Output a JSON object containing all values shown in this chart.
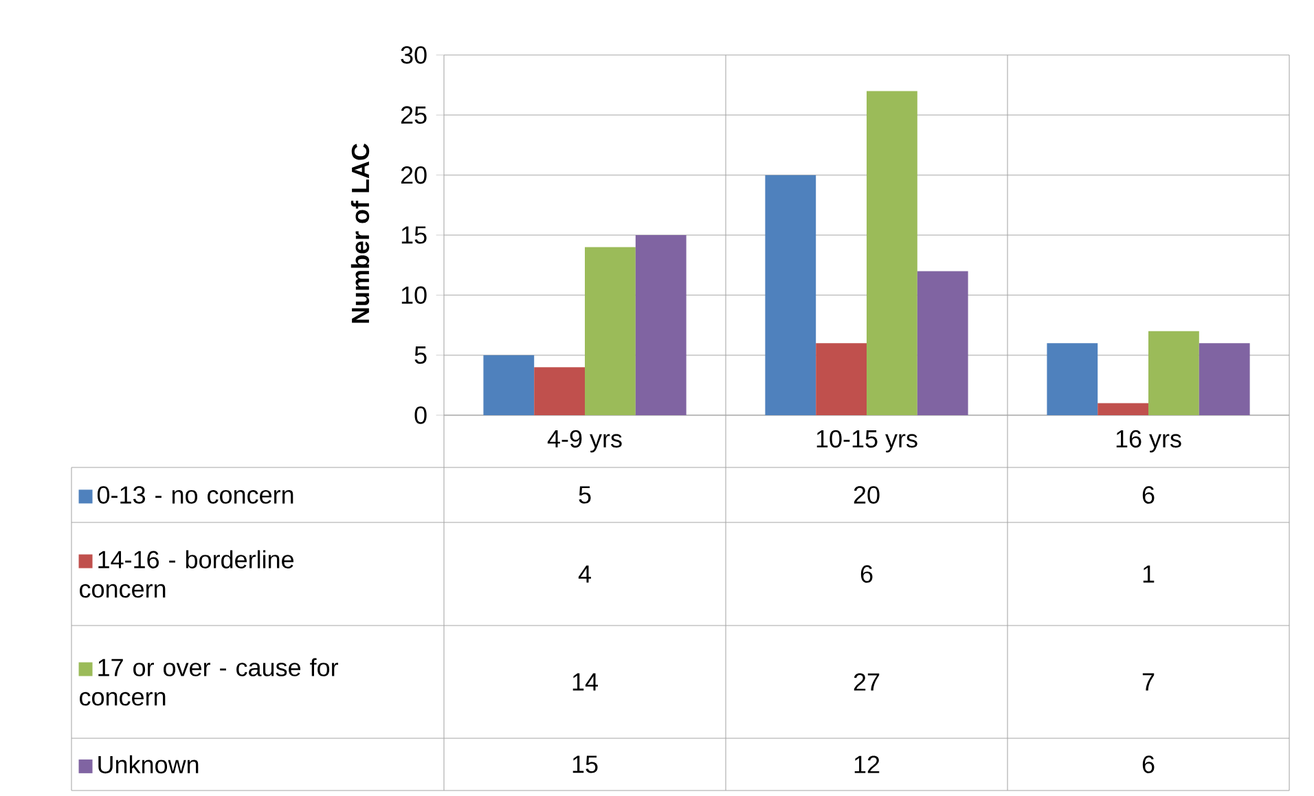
{
  "chart_data": {
    "type": "bar",
    "ylabel": "Number of LAC",
    "categories": [
      "4-9 yrs",
      "10-15 yrs",
      "16 yrs"
    ],
    "series": [
      {
        "name": "0-13 - no concern",
        "color": "#4f81bd",
        "values": [
          5,
          20,
          6
        ]
      },
      {
        "name": "14-16 - borderline concern",
        "color": "#c0504d",
        "values": [
          4,
          6,
          1
        ]
      },
      {
        "name": "17 or over - cause for concern",
        "color": "#9bbb59",
        "values": [
          14,
          27,
          7
        ]
      },
      {
        "name": "Unknown",
        "color": "#8064a2",
        "values": [
          15,
          12,
          6
        ]
      }
    ],
    "ylim": [
      0,
      30
    ],
    "yticks": [
      0,
      5,
      10,
      15,
      20,
      25,
      30
    ],
    "grid": "y",
    "legend": "bottom",
    "data_labels": true
  }
}
